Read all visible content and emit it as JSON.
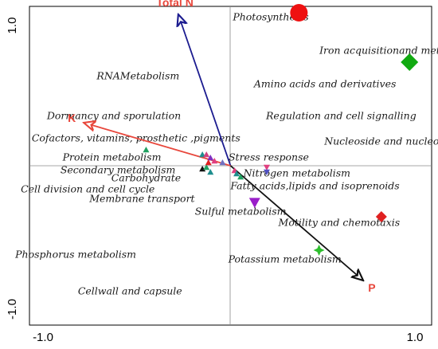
{
  "chart_data": {
    "type": "scatter",
    "title": "",
    "xlabel": "",
    "ylabel": "",
    "xlim": [
      -1.0,
      1.0
    ],
    "ylim": [
      -1.0,
      1.0
    ],
    "x_tick_labels": [
      "-1.0",
      "1.0"
    ],
    "y_tick_labels": [
      "1.0",
      "-1.0"
    ],
    "reference_lines": {
      "x": 0,
      "y": 0
    },
    "grid": false,
    "legend": "none",
    "vectors": [
      {
        "name": "Total N",
        "x": -0.26,
        "y": 0.95,
        "color": "#1b1b8f",
        "label_color": "#e8473c"
      },
      {
        "name": "K",
        "x": -0.73,
        "y": 0.27,
        "color": "#e8473c",
        "label_color": "#e8473c"
      },
      {
        "name": "P",
        "x": 0.66,
        "y": -0.72,
        "color": "#111111",
        "label_color": "#e8473c"
      }
    ],
    "function_labels": [
      {
        "text": "Photosynthesis",
        "x": 0.2,
        "y": 0.93
      },
      {
        "text": "Iron acquisitionand metabolism",
        "x": 0.84,
        "y": 0.72
      },
      {
        "text": "RNAMetabolism",
        "x": -0.46,
        "y": 0.56
      },
      {
        "text": "Amino acids and derivatives",
        "x": 0.47,
        "y": 0.51
      },
      {
        "text": "Dormancy and  sporulation",
        "x": -0.58,
        "y": 0.31
      },
      {
        "text": "Regulation and cell signalling",
        "x": 0.55,
        "y": 0.31
      },
      {
        "text": "K",
        "x": 0,
        "y": 0,
        "skip": true
      },
      {
        "text": "Cofactors, vitamins, prosthetic ,pigments",
        "x": -0.47,
        "y": 0.17
      },
      {
        "text": "Nucleoside and nucleotide",
        "x": 0.8,
        "y": 0.15
      },
      {
        "text": "Stress response",
        "x": 0.19,
        "y": 0.05
      },
      {
        "text": "Protein metabolism",
        "x": -0.59,
        "y": 0.05
      },
      {
        "text": "Secondary metabolism",
        "x": -0.56,
        "y": -0.03
      },
      {
        "text": "Nitrogen metabolism",
        "x": 0.33,
        "y": -0.05
      },
      {
        "text": "Carbohydrate",
        "x": -0.42,
        "y": -0.08
      },
      {
        "text": "Fatty acids,lipids and isoprenoids",
        "x": 0.42,
        "y": -0.13
      },
      {
        "text": "Cell division and cell cycle",
        "x": -0.71,
        "y": -0.15
      },
      {
        "text": "Membrane transport",
        "x": -0.44,
        "y": -0.21
      },
      {
        "text": "Sulful metabolism",
        "x": 0.05,
        "y": -0.29
      },
      {
        "text": "Motility and chemotaxis",
        "x": 0.54,
        "y": -0.36
      },
      {
        "text": "Phosphorus metabolism",
        "x": -0.77,
        "y": -0.56
      },
      {
        "text": "Potassium metabolism",
        "x": 0.27,
        "y": -0.59
      },
      {
        "text": "Cellwall and capsule",
        "x": -0.5,
        "y": -0.79
      }
    ],
    "points": [
      {
        "shape": "circle",
        "x": 0.34,
        "y": 0.96,
        "color": "#ee1111",
        "size": "large"
      },
      {
        "shape": "diamond",
        "x": 0.89,
        "y": 0.65,
        "color": "#11aa11",
        "size": "large"
      },
      {
        "shape": "diamond",
        "x": 0.75,
        "y": -0.32,
        "color": "#e02020",
        "size": "medium"
      },
      {
        "shape": "triangle-down",
        "x": 0.12,
        "y": -0.23,
        "color": "#9a1fc9",
        "size": "medium"
      },
      {
        "shape": "star",
        "x": 0.44,
        "y": -0.53,
        "color": "#2fbf2f",
        "size": "medium"
      },
      {
        "shape": "triangle",
        "x": -0.42,
        "y": 0.1,
        "color": "#20a060",
        "size": "small"
      },
      {
        "shape": "triangle",
        "x": -0.14,
        "y": 0.07,
        "color": "#1e8e8e",
        "size": "small"
      },
      {
        "shape": "triangle",
        "x": -0.12,
        "y": 0.07,
        "color": "#d04080",
        "size": "small"
      },
      {
        "shape": "triangle",
        "x": -0.1,
        "y": 0.05,
        "color": "#8030c0",
        "size": "small"
      },
      {
        "shape": "triangle",
        "x": -0.08,
        "y": 0.03,
        "color": "#e04080",
        "size": "small"
      },
      {
        "shape": "triangle",
        "x": -0.14,
        "y": -0.02,
        "color": "#111111",
        "size": "small"
      },
      {
        "shape": "triangle",
        "x": -0.12,
        "y": -0.01,
        "color": "#20a060",
        "size": "small"
      },
      {
        "shape": "triangle",
        "x": -0.11,
        "y": 0.02,
        "color": "#e02020",
        "size": "small"
      },
      {
        "shape": "triangle",
        "x": -0.1,
        "y": -0.04,
        "color": "#1e8e8e",
        "size": "small"
      },
      {
        "shape": "triangle",
        "x": -0.04,
        "y": 0.02,
        "color": "#7070c0",
        "size": "small"
      },
      {
        "shape": "triangle",
        "x": 0.02,
        "y": -0.03,
        "color": "#e04080",
        "size": "small"
      },
      {
        "shape": "triangle",
        "x": 0.03,
        "y": -0.05,
        "color": "#1e8e8e",
        "size": "small"
      },
      {
        "shape": "triangle",
        "x": 0.05,
        "y": -0.07,
        "color": "#20a060",
        "size": "small"
      },
      {
        "shape": "triangle-down",
        "x": 0.18,
        "y": -0.01,
        "color": "#e04080",
        "size": "small"
      },
      {
        "shape": "triangle-down",
        "x": 0.18,
        "y": -0.04,
        "color": "#5050c0",
        "size": "small"
      }
    ]
  }
}
